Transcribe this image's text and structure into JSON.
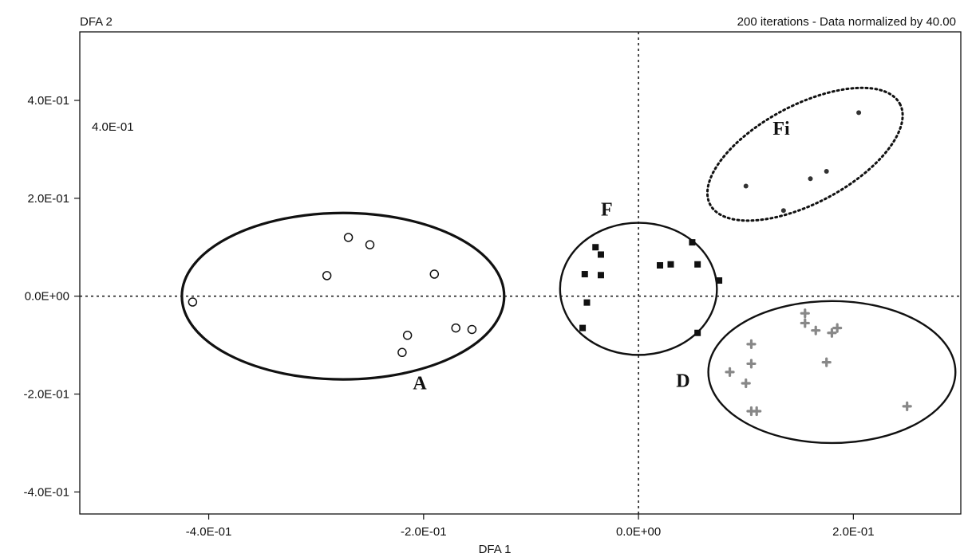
{
  "chart_data": {
    "type": "scatter",
    "title": "",
    "subtitle": "200 iterations - Data normalized by 40.00",
    "xlabel": "DFA 1",
    "ylabel": "DFA 2",
    "inset_text": "4.0E-01",
    "xlim": [
      -0.52,
      0.3
    ],
    "ylim": [
      -0.445,
      0.54
    ],
    "x_ticks": [
      -0.4,
      -0.2,
      0.0,
      0.2
    ],
    "x_tick_labels": [
      "-4.0E-01",
      "-2.0E-01",
      "0.0E+00",
      "2.0E-01"
    ],
    "y_ticks": [
      0.4,
      0.2,
      0.0,
      -0.2,
      -0.4
    ],
    "y_tick_labels": [
      "4.0E-01",
      "2.0E-01",
      "0.0E+00",
      "-2.0E-01",
      "-4.0E-01"
    ],
    "reference_lines": {
      "x": 0.0,
      "y": 0.0,
      "style": "dotted"
    },
    "grid": false,
    "groups": [
      {
        "name": "A",
        "marker": "open-circle",
        "color": "#111111",
        "ellipse": {
          "cx": -0.275,
          "cy": 0.0,
          "rx": 0.15,
          "ry": 0.17,
          "style": "solid-thick"
        },
        "label_pos": [
          -0.21,
          -0.19
        ],
        "points": [
          [
            -0.415,
            -0.012
          ],
          [
            -0.29,
            0.042
          ],
          [
            -0.27,
            0.12
          ],
          [
            -0.25,
            0.105
          ],
          [
            -0.19,
            0.045
          ],
          [
            -0.215,
            -0.08
          ],
          [
            -0.22,
            -0.115
          ],
          [
            -0.17,
            -0.065
          ],
          [
            -0.155,
            -0.068
          ]
        ]
      },
      {
        "name": "F",
        "marker": "filled-square",
        "color": "#111111",
        "ellipse": {
          "cx": 0.0,
          "cy": 0.015,
          "rx": 0.073,
          "ry": 0.135,
          "style": "solid"
        },
        "label_pos": [
          -0.035,
          0.165
        ],
        "points": [
          [
            -0.04,
            0.1
          ],
          [
            -0.035,
            0.085
          ],
          [
            -0.05,
            0.045
          ],
          [
            -0.035,
            0.043
          ],
          [
            -0.048,
            -0.013
          ],
          [
            -0.052,
            -0.065
          ],
          [
            0.02,
            0.063
          ],
          [
            0.03,
            0.065
          ],
          [
            0.05,
            0.11
          ],
          [
            0.055,
            0.065
          ],
          [
            0.075,
            0.032
          ],
          [
            0.055,
            -0.075
          ]
        ]
      },
      {
        "name": "Fi",
        "marker": "small-dot",
        "color": "#333333",
        "ellipse": {
          "cx": 0.155,
          "cy": 0.29,
          "rx": 0.1,
          "ry": 0.1,
          "rotation_deg": -28,
          "style": "dotted"
        },
        "label_pos": [
          0.125,
          0.33
        ],
        "points": [
          [
            0.1,
            0.225
          ],
          [
            0.135,
            0.175
          ],
          [
            0.16,
            0.24
          ],
          [
            0.175,
            0.255
          ],
          [
            0.205,
            0.375
          ]
        ]
      },
      {
        "name": "D",
        "marker": "gray-cross",
        "color": "#888888",
        "ellipse": {
          "cx": 0.18,
          "cy": -0.155,
          "rx": 0.115,
          "ry": 0.145,
          "style": "solid"
        },
        "label_pos": [
          0.035,
          -0.185
        ],
        "points": [
          [
            0.085,
            -0.155
          ],
          [
            0.1,
            -0.178
          ],
          [
            0.105,
            -0.098
          ],
          [
            0.105,
            -0.138
          ],
          [
            0.105,
            -0.235
          ],
          [
            0.11,
            -0.235
          ],
          [
            0.155,
            -0.035
          ],
          [
            0.155,
            -0.055
          ],
          [
            0.165,
            -0.07
          ],
          [
            0.18,
            -0.075
          ],
          [
            0.185,
            -0.065
          ],
          [
            0.175,
            -0.135
          ],
          [
            0.25,
            -0.225
          ]
        ]
      }
    ]
  }
}
